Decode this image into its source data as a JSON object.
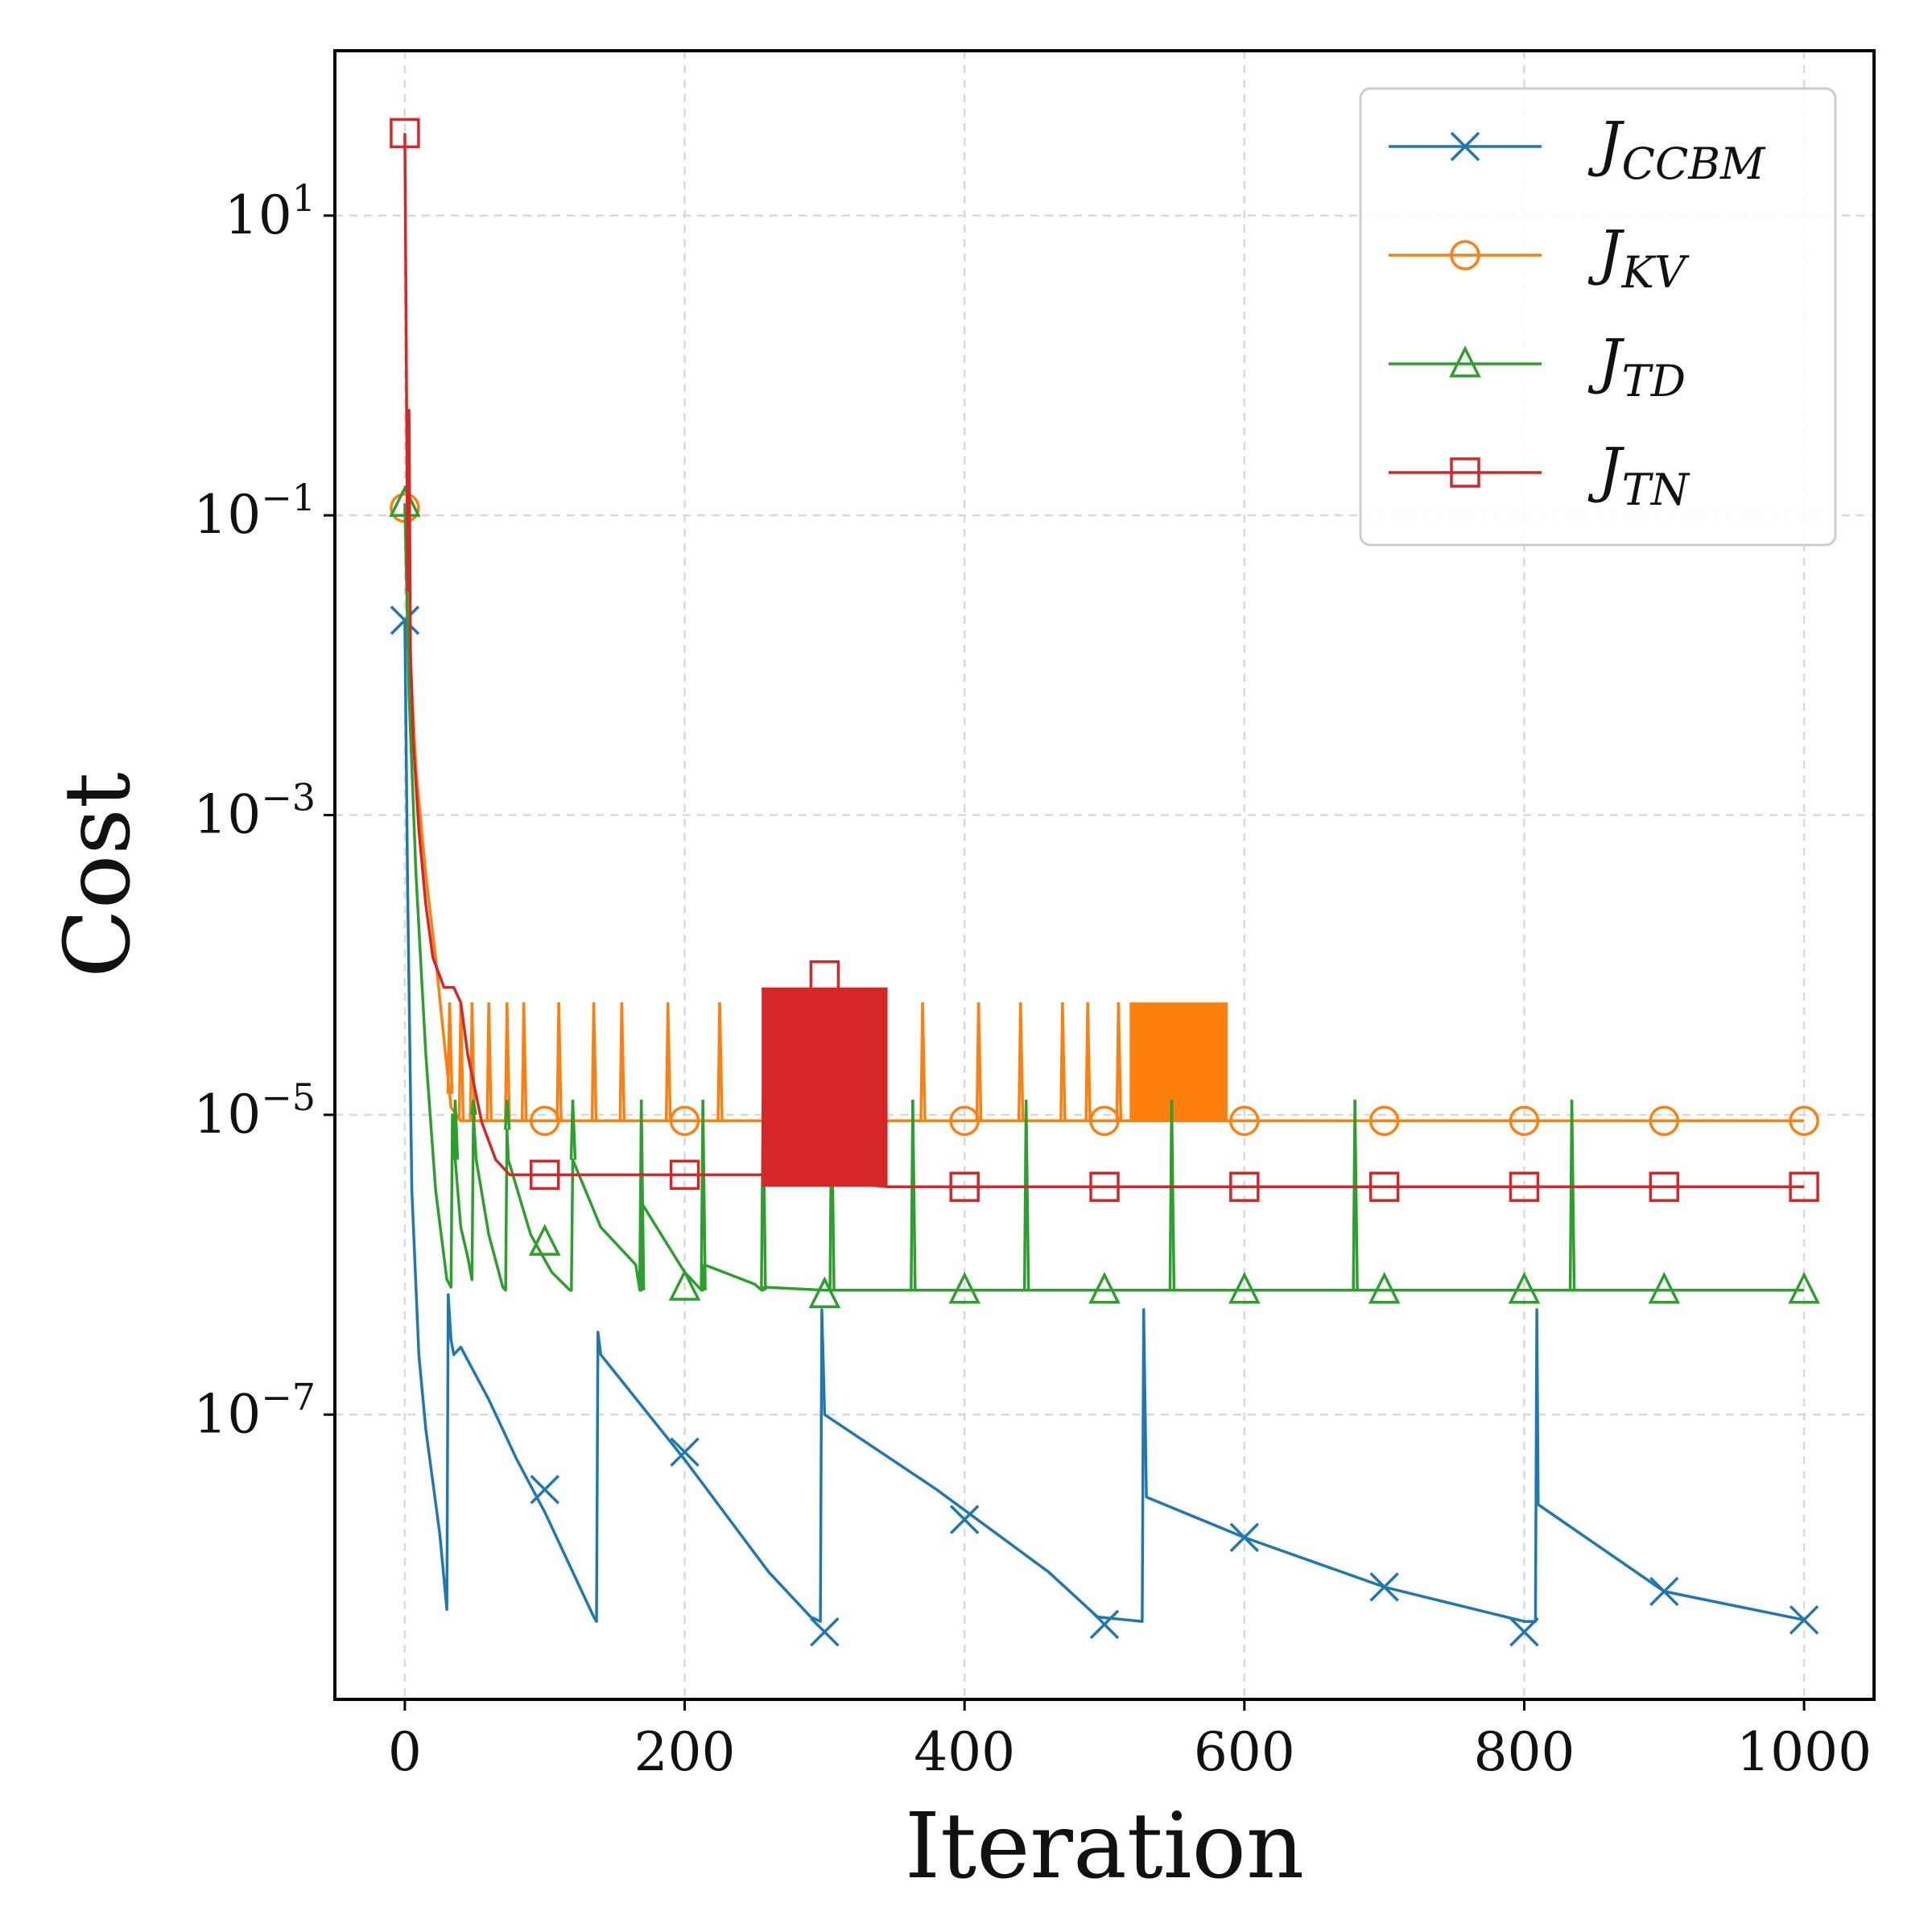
{
  "chart_data": {
    "type": "line",
    "xlabel": "Iteration",
    "ylabel": "Cost",
    "xlim": [
      -50,
      1050
    ],
    "ylim_log10": [
      -8.9,
      2.1
    ],
    "yscale": "log",
    "grid": true,
    "legend_position": "top-right",
    "xticks": [
      0,
      200,
      400,
      600,
      800,
      1000
    ],
    "xtick_labels": [
      "0",
      "200",
      "400",
      "600",
      "800",
      "1000"
    ],
    "yticks_exp": [
      1,
      -1,
      -3,
      -5,
      -7
    ],
    "ytick_base": "10",
    "ytick_exponents": [
      "1",
      "−1",
      "−3",
      "−5",
      "−7"
    ],
    "series": [
      {
        "name": "J",
        "subscript": "CCBM",
        "color": "#1f77b4",
        "marker": "x",
        "marker_x": [
          0,
          100,
          200,
          300,
          400,
          500,
          600,
          700,
          800,
          900,
          1000
        ],
        "marker_log10y": [
          -1.7,
          -7.5,
          -7.25,
          -8.45,
          -7.7,
          -8.4,
          -7.82,
          -8.15,
          -8.45,
          -8.18,
          -8.37
        ],
        "x": [
          0,
          2,
          5,
          10,
          15,
          20,
          25,
          28,
          30,
          31,
          33,
          35,
          40,
          60,
          80,
          100,
          120,
          135,
          137,
          138,
          140,
          200,
          260,
          290,
          297,
          298,
          300,
          380,
          460,
          495,
          527,
          528,
          530,
          600,
          700,
          800,
          808,
          809,
          810,
          900,
          1000
        ],
        "log10y": [
          -1.7,
          -3.5,
          -5.5,
          -6.6,
          -7.1,
          -7.45,
          -7.8,
          -8.1,
          -8.3,
          -6.2,
          -6.5,
          -6.6,
          -6.55,
          -6.9,
          -7.3,
          -7.65,
          -8.05,
          -8.35,
          -8.38,
          -6.45,
          -6.6,
          -7.3,
          -8.05,
          -8.35,
          -8.38,
          -6.3,
          -7.0,
          -7.5,
          -8.05,
          -8.35,
          -8.38,
          -6.3,
          -7.55,
          -7.82,
          -8.15,
          -8.38,
          -8.38,
          -6.3,
          -7.6,
          -8.18,
          -8.37
        ]
      },
      {
        "name": "J",
        "subscript": "KV",
        "color": "#ff7f0e",
        "marker": "circle",
        "marker_x": [
          0,
          100,
          200,
          300,
          400,
          500,
          600,
          700,
          800,
          900,
          1000
        ],
        "marker_log10y": [
          -0.95,
          -5.04,
          -5.04,
          -5.04,
          -5.04,
          -5.04,
          -5.04,
          -5.04,
          -5.04,
          -5.04,
          -5.04
        ],
        "x": [
          0,
          3,
          8,
          15,
          22,
          28,
          33,
          40,
          100,
          1000
        ],
        "log10y": [
          -0.95,
          -1.8,
          -2.7,
          -3.4,
          -3.95,
          -4.5,
          -4.95,
          -5.04,
          -5.04,
          -5.04
        ],
        "spike_top_log10y": -4.25,
        "spike_x": [
          32,
          40,
          48,
          60,
          73,
          85,
          110,
          135,
          155,
          188,
          225,
          370,
          410,
          440,
          470,
          488,
          510
        ],
        "band_x": [
          518,
          588
        ],
        "band_top_log10y": -4.25,
        "band_bottom_log10y": -5.04
      },
      {
        "name": "J",
        "subscript": "TD",
        "color": "#2ca02c",
        "marker": "triangle",
        "marker_x": [
          0,
          100,
          200,
          300,
          400,
          500,
          600,
          700,
          800,
          900,
          1000
        ],
        "marker_log10y": [
          -0.92,
          -5.85,
          -6.15,
          -6.2,
          -6.17,
          -6.17,
          -6.17,
          -6.17,
          -6.17,
          -6.17,
          -6.17
        ],
        "x": [
          0,
          3,
          8,
          15,
          22,
          30,
          33,
          34,
          36,
          40,
          45,
          48,
          49,
          51,
          60,
          70,
          72,
          73,
          74,
          90,
          105,
          118,
          119,
          120,
          140,
          165,
          168,
          169,
          170,
          200,
          212,
          213,
          214,
          250,
          255,
          256,
          257,
          300,
          1000
        ],
        "log10y": [
          -0.92,
          -2.2,
          -3.4,
          -4.6,
          -5.5,
          -6.1,
          -6.15,
          -5.0,
          -5.3,
          -5.75,
          -5.95,
          -6.1,
          -5.0,
          -5.3,
          -5.8,
          -6.15,
          -6.17,
          -5.1,
          -5.3,
          -5.8,
          -6.05,
          -6.17,
          -6.17,
          -5.3,
          -5.75,
          -6.0,
          -6.17,
          -6.17,
          -5.6,
          -6.05,
          -6.17,
          -6.17,
          -6.0,
          -6.13,
          -6.17,
          -6.17,
          -6.15,
          -6.17,
          -6.17
        ],
        "spike_top_log10y": -4.9,
        "spike_x": [
          36,
          49,
          73,
          120,
          169,
          213,
          256,
          305,
          363,
          444,
          548,
          679,
          834
        ]
      },
      {
        "name": "J",
        "subscript": "TN",
        "color": "#d62728",
        "marker": "square",
        "marker_x": [
          0,
          100,
          200,
          300,
          400,
          500,
          600,
          700,
          800,
          900,
          1000
        ],
        "marker_log10y": [
          1.55,
          -5.4,
          -5.4,
          -4.07,
          -5.48,
          -5.48,
          -5.48,
          -5.48,
          -5.48,
          -5.48,
          -5.48
        ],
        "x": [
          0,
          1,
          2,
          3,
          4,
          6,
          10,
          15,
          20,
          28,
          35,
          40,
          45,
          55,
          65,
          75,
          100,
          255,
          345,
          346,
          1000
        ],
        "log10y": [
          1.55,
          0.2,
          -1.5,
          -0.3,
          -1.9,
          -2.5,
          -3.1,
          -3.6,
          -3.95,
          -4.15,
          -4.15,
          -4.25,
          -4.6,
          -5.05,
          -5.3,
          -5.4,
          -5.4,
          -5.4,
          -5.48,
          -5.48,
          -5.48
        ],
        "band_x": [
          255,
          345
        ],
        "band_top_log10y": -4.15,
        "band_bottom_log10y": -5.48
      }
    ]
  }
}
